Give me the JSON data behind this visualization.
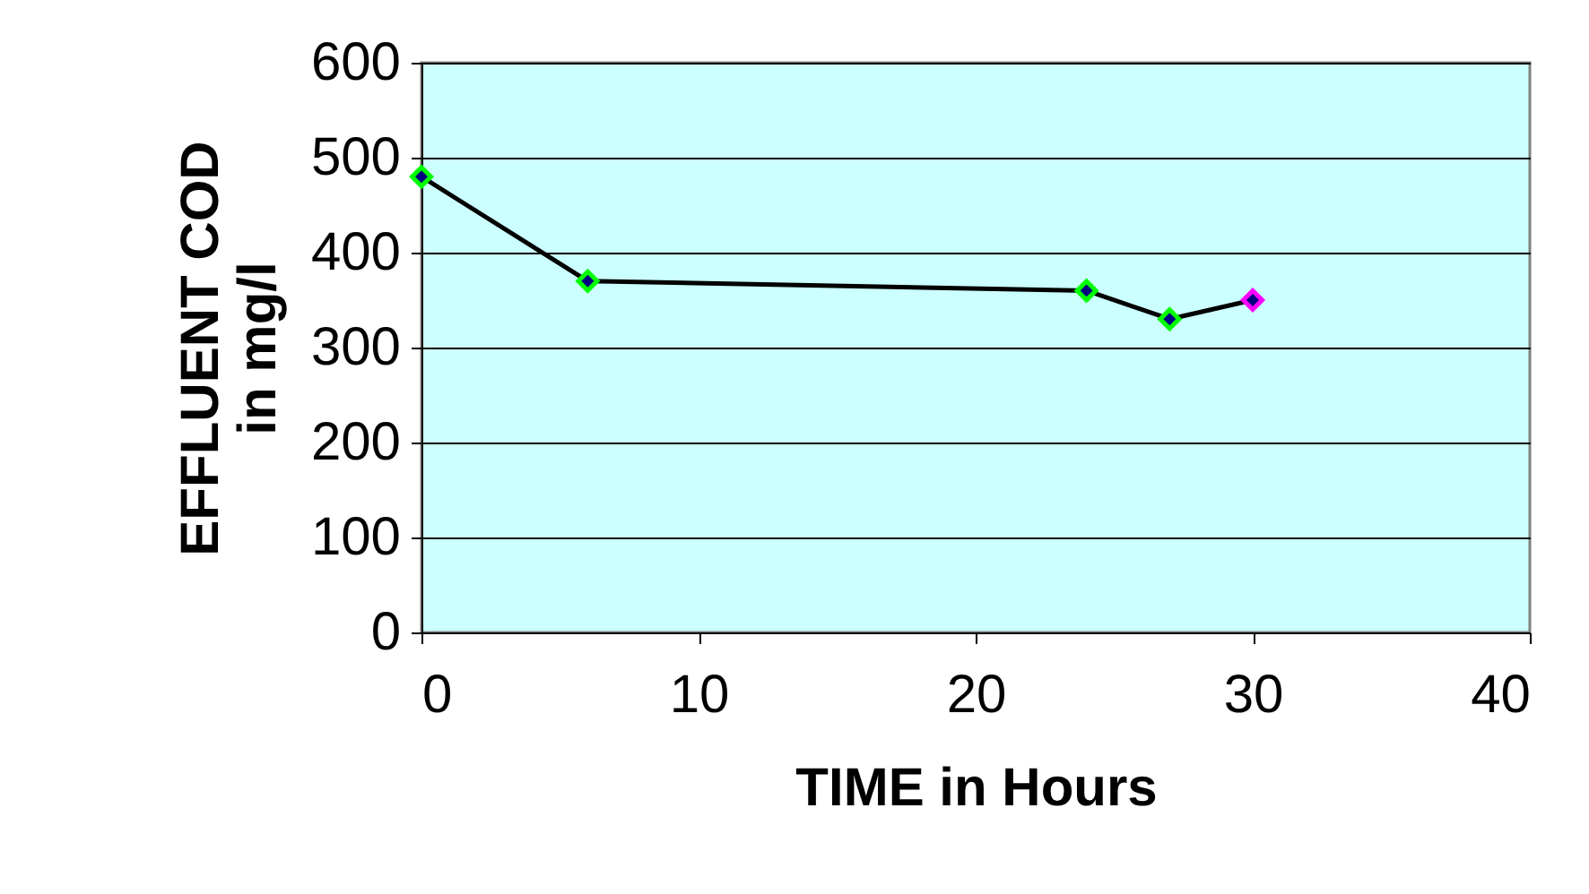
{
  "chart_data": {
    "type": "line",
    "xlabel": "TIME in Hours",
    "ylabel": "EFFLUENT COD\nin mg/l",
    "x": [
      0,
      6,
      24,
      27,
      30
    ],
    "series": [
      {
        "color": "#000000",
        "values": [
          480,
          370,
          360,
          330,
          350
        ],
        "colors": [
          "#00ff00",
          "#00ff00",
          "#00ff00",
          "#00ff00",
          "#ff00ff"
        ]
      }
    ],
    "xlim": [
      0,
      40
    ],
    "xticks": [
      0,
      10,
      20,
      30,
      40
    ],
    "ylim": [
      0,
      600
    ],
    "yticks": [
      0,
      100,
      200,
      300,
      400,
      500,
      600
    ],
    "grid": "y",
    "marker": "diamond",
    "line_style": "solid"
  }
}
